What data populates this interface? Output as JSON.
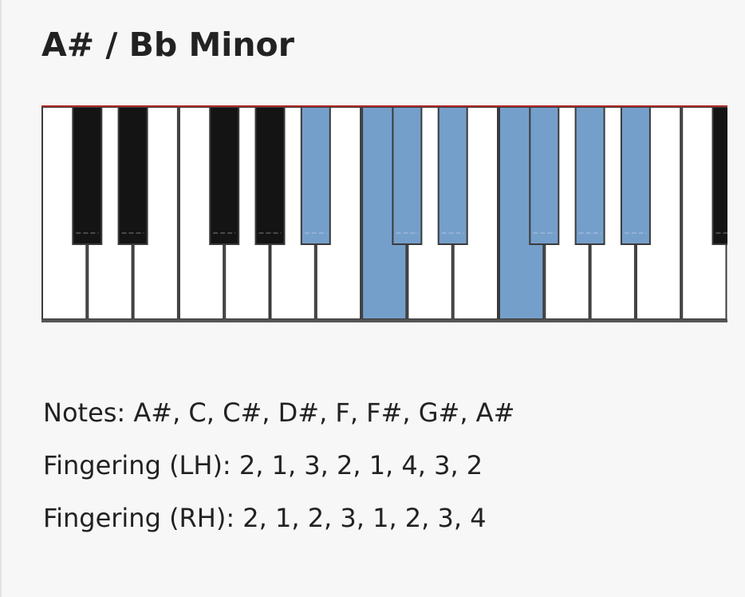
{
  "scale": {
    "title": "A# / Bb Minor",
    "notes_line": "Notes: A#, C, C#, D#, F, F#, G#, A#",
    "fingering_lh_line": "Fingering (LH): 2, 1, 3, 2, 1, 4, 3, 2",
    "fingering_rh_line": "Fingering (RH): 2, 1, 2, 3, 1, 2, 3, 4"
  },
  "keyboard": {
    "white_keys": [
      {
        "note": "C",
        "highlighted": false
      },
      {
        "note": "D",
        "highlighted": false
      },
      {
        "note": "E",
        "highlighted": false
      },
      {
        "note": "F",
        "highlighted": false
      },
      {
        "note": "G",
        "highlighted": false
      },
      {
        "note": "A",
        "highlighted": false
      },
      {
        "note": "B",
        "highlighted": false
      },
      {
        "note": "C",
        "highlighted": true
      },
      {
        "note": "D",
        "highlighted": false
      },
      {
        "note": "E",
        "highlighted": false
      },
      {
        "note": "F",
        "highlighted": true
      },
      {
        "note": "G",
        "highlighted": false
      },
      {
        "note": "A",
        "highlighted": false
      },
      {
        "note": "B",
        "highlighted": false
      },
      {
        "note": "C",
        "highlighted": false
      }
    ],
    "black_keys": [
      {
        "note": "C#",
        "highlighted": false
      },
      {
        "note": "D#",
        "highlighted": false
      },
      {
        "note": "F#",
        "highlighted": false
      },
      {
        "note": "G#",
        "highlighted": false
      },
      {
        "note": "A#",
        "highlighted": true
      },
      {
        "note": "C#",
        "highlighted": true
      },
      {
        "note": "D#",
        "highlighted": true
      },
      {
        "note": "F#",
        "highlighted": true
      },
      {
        "note": "G#",
        "highlighted": true
      },
      {
        "note": "A#",
        "highlighted": true
      },
      {
        "note": "C#",
        "highlighted": false
      }
    ],
    "colors": {
      "highlight": "#759fcb",
      "white_key": "#ffffff",
      "black_key": "#141414",
      "key_border": "#3a3a3a",
      "top_line": "#b02a2a"
    }
  }
}
